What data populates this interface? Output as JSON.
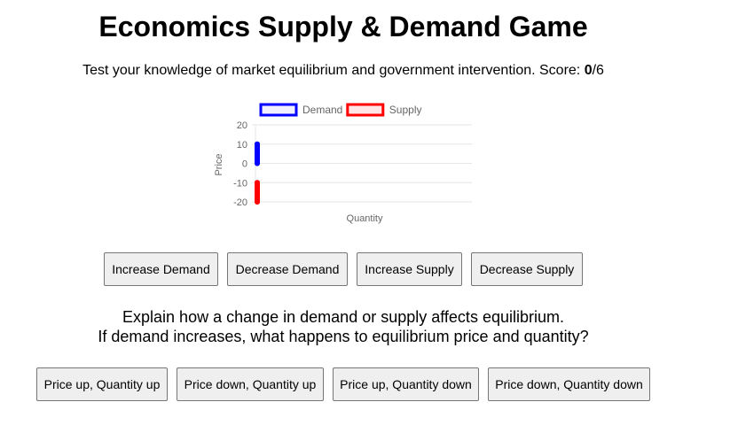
{
  "header": {
    "title": "Economics Supply & Demand Game",
    "subtitle_text": "Test your knowledge of market equilibrium and government intervention. Score: ",
    "score": "0",
    "score_total": "/6"
  },
  "chart_data": {
    "type": "line",
    "xlabel": "Quantity",
    "ylabel": "Price",
    "ylim": [
      -20,
      20
    ],
    "yticks": [
      "20",
      "10",
      "0",
      "-10",
      "-20"
    ],
    "grid": true,
    "legend_placement": "top",
    "series": [
      {
        "name": "Demand",
        "color": "#0000ff",
        "fill": "#f0f0ff",
        "y": [
          10,
          0
        ]
      },
      {
        "name": "Supply",
        "color": "#ff0000",
        "fill": "#ffe5e5",
        "y": [
          -10,
          -20
        ]
      }
    ]
  },
  "controls": {
    "increase_demand": "Increase Demand",
    "decrease_demand": "Decrease Demand",
    "increase_supply": "Increase Supply",
    "decrease_supply": "Decrease Supply"
  },
  "question": {
    "line1": "Explain how a change in demand or supply affects equilibrium.",
    "line2": "If demand increases, what happens to equilibrium price and quantity?"
  },
  "answers": {
    "a1": "Price up, Quantity up",
    "a2": "Price down, Quantity up",
    "a3": "Price up, Quantity down",
    "a4": "Price down, Quantity down"
  }
}
